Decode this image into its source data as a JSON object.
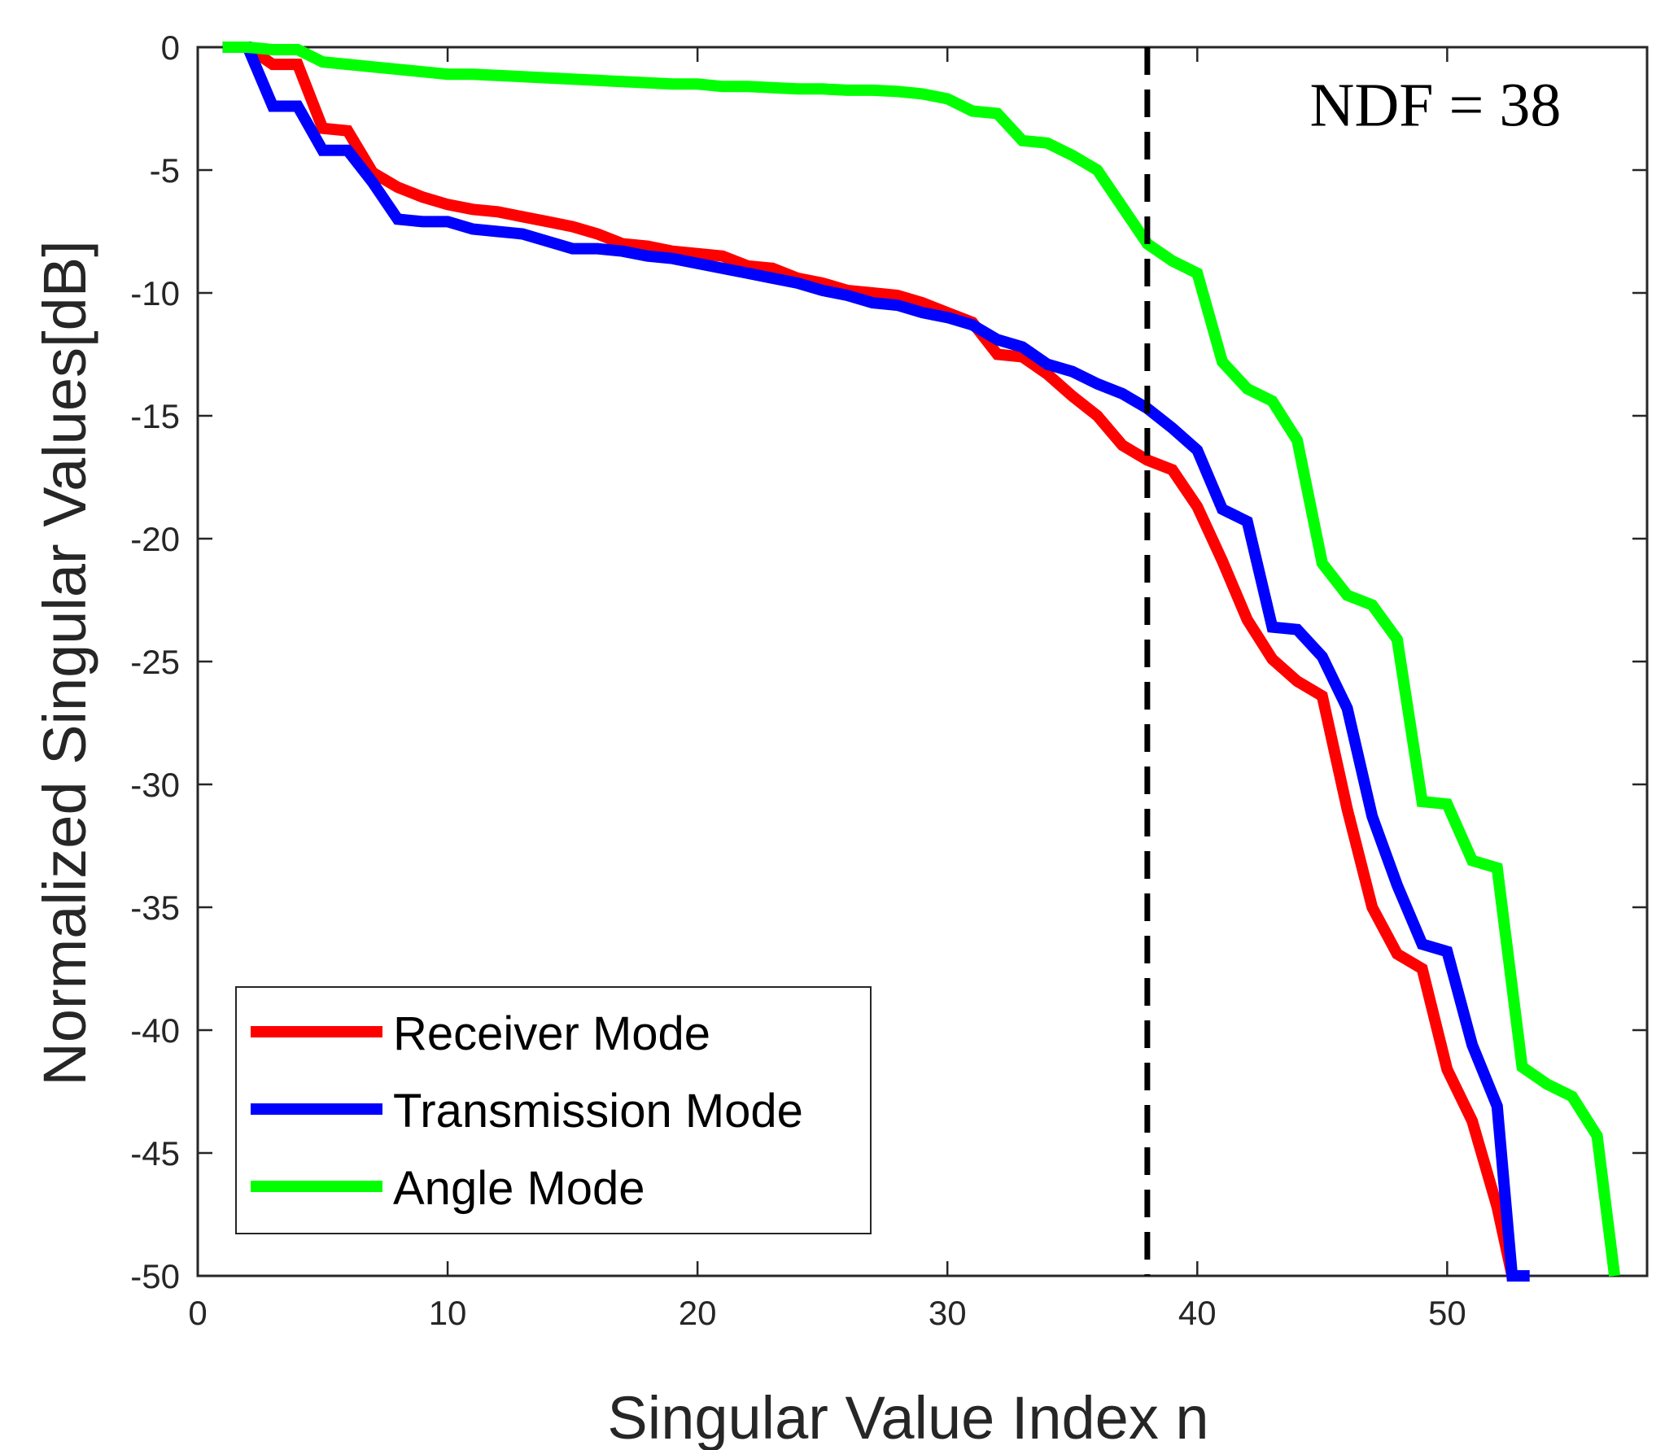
{
  "chart_data": {
    "type": "line",
    "title": "",
    "xlabel": "Singular Value Index n",
    "ylabel": "Normalized Singular Values[dB]",
    "xlim": [
      0,
      58
    ],
    "ylim": [
      -50,
      0
    ],
    "xticks": [
      0,
      10,
      20,
      30,
      40,
      50
    ],
    "yticks": [
      0,
      -5,
      -10,
      -15,
      -20,
      -25,
      -30,
      -35,
      -40,
      -45,
      -50
    ],
    "grid": false,
    "legend_position": "bottom-left",
    "annotations": [
      {
        "type": "vline",
        "x": 38,
        "style": "dashed",
        "color": "#000000"
      },
      {
        "type": "text",
        "text": "NDF = 38",
        "x": 44.5,
        "y": -3.2
      }
    ],
    "series": [
      {
        "name": "Receiver Mode",
        "color": "#ff0000",
        "x": [
          1,
          2,
          3,
          4,
          5,
          6,
          7,
          8,
          9,
          10,
          11,
          12,
          13,
          14,
          15,
          16,
          17,
          18,
          19,
          20,
          21,
          22,
          23,
          24,
          25,
          26,
          27,
          28,
          29,
          30,
          31,
          32,
          33,
          34,
          35,
          36,
          37,
          38,
          39,
          40,
          41,
          42,
          43,
          44,
          45,
          46,
          47,
          48,
          49,
          50,
          51,
          52,
          52.6
        ],
        "y": [
          0,
          0,
          -0.7,
          -0.7,
          -3.3,
          -3.4,
          -5.1,
          -5.7,
          -6.1,
          -6.4,
          -6.6,
          -6.7,
          -6.9,
          -7.1,
          -7.3,
          -7.6,
          -8.0,
          -8.1,
          -8.3,
          -8.4,
          -8.5,
          -8.9,
          -9.0,
          -9.4,
          -9.6,
          -9.9,
          -10.0,
          -10.1,
          -10.4,
          -10.8,
          -11.2,
          -12.5,
          -12.6,
          -13.3,
          -14.2,
          -15.0,
          -16.2,
          -16.8,
          -17.2,
          -18.7,
          -20.9,
          -23.3,
          -24.9,
          -25.8,
          -26.4,
          -31.0,
          -35.0,
          -36.9,
          -37.5,
          -41.6,
          -43.7,
          -47.2,
          -50
        ]
      },
      {
        "name": "Transmission Mode",
        "color": "#0000ff",
        "x": [
          1,
          2,
          3,
          4,
          5,
          6,
          7,
          8,
          9,
          10,
          11,
          12,
          13,
          14,
          15,
          16,
          17,
          18,
          19,
          20,
          21,
          22,
          23,
          24,
          25,
          26,
          27,
          28,
          29,
          30,
          31,
          32,
          33,
          34,
          35,
          36,
          37,
          38,
          39,
          40,
          41,
          42,
          43,
          44,
          45,
          46,
          47,
          48,
          49,
          50,
          51,
          52,
          52.6,
          53.3
        ],
        "y": [
          0,
          0,
          -2.4,
          -2.4,
          -4.2,
          -4.2,
          -5.5,
          -7.0,
          -7.1,
          -7.1,
          -7.4,
          -7.5,
          -7.6,
          -7.9,
          -8.2,
          -8.2,
          -8.3,
          -8.5,
          -8.6,
          -8.8,
          -9.0,
          -9.2,
          -9.4,
          -9.6,
          -9.9,
          -10.1,
          -10.4,
          -10.5,
          -10.8,
          -11.0,
          -11.3,
          -11.9,
          -12.2,
          -12.9,
          -13.2,
          -13.7,
          -14.1,
          -14.7,
          -15.5,
          -16.4,
          -18.8,
          -19.3,
          -23.6,
          -23.7,
          -24.8,
          -26.9,
          -31.3,
          -34.1,
          -36.5,
          -36.8,
          -40.6,
          -43.1,
          -50,
          -50
        ]
      },
      {
        "name": "Angle Mode",
        "color": "#00ff00",
        "x": [
          1,
          2,
          3,
          4,
          5,
          6,
          7,
          8,
          9,
          10,
          11,
          12,
          13,
          14,
          15,
          16,
          17,
          18,
          19,
          20,
          21,
          22,
          23,
          24,
          25,
          26,
          27,
          28,
          29,
          30,
          31,
          32,
          33,
          34,
          35,
          36,
          37,
          38,
          39,
          40,
          41,
          42,
          43,
          44,
          45,
          46,
          47,
          48,
          49,
          50,
          51,
          52,
          53,
          54,
          55,
          56,
          56.7
        ],
        "y": [
          0,
          0,
          -0.1,
          -0.1,
          -0.6,
          -0.7,
          -0.8,
          -0.9,
          -1.0,
          -1.1,
          -1.1,
          -1.15,
          -1.2,
          -1.25,
          -1.3,
          -1.35,
          -1.4,
          -1.45,
          -1.5,
          -1.5,
          -1.6,
          -1.6,
          -1.65,
          -1.7,
          -1.7,
          -1.75,
          -1.75,
          -1.8,
          -1.9,
          -2.1,
          -2.6,
          -2.7,
          -3.8,
          -3.9,
          -4.4,
          -5.0,
          -6.5,
          -8.0,
          -8.7,
          -9.2,
          -12.8,
          -13.9,
          -14.4,
          -16.0,
          -21.0,
          -22.3,
          -22.7,
          -24.1,
          -30.7,
          -30.8,
          -33.1,
          -33.4,
          -41.5,
          -42.2,
          -42.7,
          -44.3,
          -50
        ]
      }
    ]
  }
}
